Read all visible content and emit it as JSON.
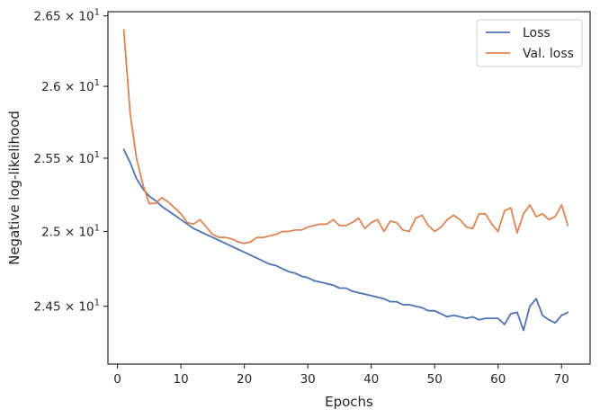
{
  "chart_data": {
    "type": "line",
    "xlabel": "Epochs",
    "ylabel": "Negative log-likelihood",
    "xlim": [
      -1.5,
      74.5
    ],
    "ylim": [
      24.12,
      26.53
    ],
    "y_scale": "log",
    "grid": false,
    "legend_position": "top-right",
    "x_ticks": [
      {
        "value": 0,
        "label": "0"
      },
      {
        "value": 10,
        "label": "10"
      },
      {
        "value": 20,
        "label": "20"
      },
      {
        "value": 30,
        "label": "30"
      },
      {
        "value": 40,
        "label": "40"
      },
      {
        "value": 50,
        "label": "50"
      },
      {
        "value": 60,
        "label": "60"
      },
      {
        "value": 70,
        "label": "70"
      }
    ],
    "y_ticks": [
      {
        "value": 24.5,
        "base": "2.45",
        "exp": "1"
      },
      {
        "value": 25.0,
        "base": "2.5",
        "exp": "1"
      },
      {
        "value": 25.5,
        "base": "2.55",
        "exp": "1"
      },
      {
        "value": 26.0,
        "base": "2.6",
        "exp": "1"
      },
      {
        "value": 26.5,
        "base": "2.65",
        "exp": "1"
      }
    ],
    "series": [
      {
        "name": "Loss",
        "color": "#4c72b0",
        "x": [
          1,
          2,
          3,
          4,
          5,
          6,
          7,
          8,
          9,
          10,
          11,
          12,
          13,
          14,
          15,
          16,
          17,
          18,
          19,
          20,
          21,
          22,
          23,
          24,
          25,
          26,
          27,
          28,
          29,
          30,
          31,
          32,
          33,
          34,
          35,
          36,
          37,
          38,
          39,
          40,
          41,
          42,
          43,
          44,
          45,
          46,
          47,
          48,
          49,
          50,
          51,
          52,
          53,
          54,
          55,
          56,
          57,
          58,
          59,
          60,
          61,
          62,
          63,
          64,
          65,
          66,
          67,
          68,
          69,
          70,
          71
        ],
        "values": [
          25.56,
          25.47,
          25.36,
          25.29,
          25.24,
          25.21,
          25.17,
          25.14,
          25.11,
          25.08,
          25.05,
          25.02,
          25.0,
          24.98,
          24.96,
          24.94,
          24.92,
          24.9,
          24.88,
          24.86,
          24.84,
          24.82,
          24.8,
          24.78,
          24.77,
          24.75,
          24.73,
          24.72,
          24.7,
          24.69,
          24.67,
          24.66,
          24.65,
          24.64,
          24.62,
          24.62,
          24.6,
          24.59,
          24.58,
          24.57,
          24.56,
          24.55,
          24.53,
          24.53,
          24.51,
          24.51,
          24.5,
          24.49,
          24.47,
          24.47,
          24.45,
          24.43,
          24.44,
          24.43,
          24.42,
          24.43,
          24.41,
          24.42,
          24.42,
          24.42,
          24.38,
          24.45,
          24.46,
          24.34,
          24.5,
          24.55,
          24.44,
          24.41,
          24.39,
          24.44,
          24.46
        ]
      },
      {
        "name": "Val. loss",
        "color": "#dd8452",
        "x": [
          1,
          2,
          3,
          4,
          5,
          6,
          7,
          8,
          9,
          10,
          11,
          12,
          13,
          14,
          15,
          16,
          17,
          18,
          19,
          20,
          21,
          22,
          23,
          24,
          25,
          26,
          27,
          28,
          29,
          30,
          31,
          32,
          33,
          34,
          35,
          36,
          37,
          38,
          39,
          40,
          41,
          42,
          43,
          44,
          45,
          46,
          47,
          48,
          49,
          50,
          51,
          52,
          53,
          54,
          55,
          56,
          57,
          58,
          59,
          60,
          61,
          62,
          63,
          64,
          65,
          66,
          67,
          68,
          69,
          70,
          71
        ],
        "values": [
          26.4,
          25.81,
          25.5,
          25.32,
          25.19,
          25.19,
          25.23,
          25.2,
          25.16,
          25.12,
          25.06,
          25.05,
          25.08,
          25.03,
          24.98,
          24.96,
          24.96,
          24.95,
          24.93,
          24.92,
          24.93,
          24.96,
          24.96,
          24.97,
          24.98,
          25.0,
          25.0,
          25.01,
          25.01,
          25.03,
          25.04,
          25.05,
          25.05,
          25.08,
          25.04,
          25.04,
          25.06,
          25.09,
          25.02,
          25.06,
          25.08,
          25.0,
          25.07,
          25.06,
          25.01,
          25.0,
          25.09,
          25.11,
          25.04,
          25.0,
          25.03,
          25.08,
          25.11,
          25.08,
          25.03,
          25.02,
          25.12,
          25.12,
          25.05,
          25.0,
          25.14,
          25.16,
          24.99,
          25.12,
          25.18,
          25.1,
          25.12,
          25.08,
          25.1,
          25.18,
          25.04
        ]
      }
    ]
  }
}
